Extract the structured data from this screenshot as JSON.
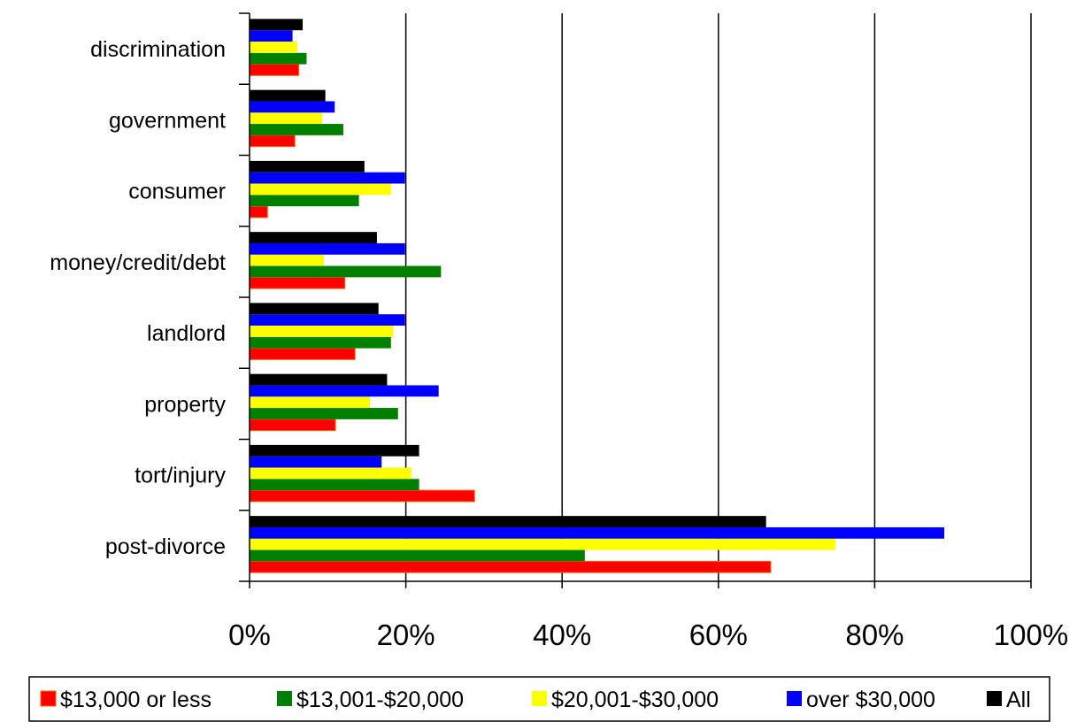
{
  "chart_data": {
    "type": "bar",
    "orientation": "horizontal",
    "categories": [
      "discrimination",
      "government",
      "consumer",
      "money/credit/debt",
      "landlord",
      "property",
      "tort/injury",
      "post-divorce"
    ],
    "series": [
      {
        "name": "$13,000 or less",
        "color": "#ff0000",
        "values": [
          6.3,
          5.8,
          2.3,
          12.2,
          13.5,
          11.0,
          28.8,
          66.7
        ]
      },
      {
        "name": "$13,001-$20,000",
        "color": "#008000",
        "values": [
          7.3,
          12.0,
          14.0,
          24.5,
          18.1,
          19.0,
          21.7,
          42.9
        ]
      },
      {
        "name": "$20,001-$30,000",
        "color": "#ffff00",
        "values": [
          6.1,
          9.3,
          18.1,
          9.5,
          18.4,
          15.4,
          20.7,
          75.0
        ]
      },
      {
        "name": "over $30,000",
        "color": "#0000ff",
        "values": [
          5.5,
          10.9,
          19.9,
          19.9,
          19.9,
          24.2,
          16.9,
          88.9
        ]
      },
      {
        "name": "All",
        "color": "#000000",
        "values": [
          6.8,
          9.7,
          14.7,
          16.3,
          16.5,
          17.6,
          21.7,
          66.1
        ]
      }
    ],
    "x_tick_labels": [
      "0%",
      "20%",
      "40%",
      "60%",
      "80%",
      "100%"
    ],
    "xlim": [
      0,
      100
    ],
    "grid": true,
    "legend_position": "bottom",
    "title": "",
    "xlabel": "",
    "ylabel": ""
  }
}
